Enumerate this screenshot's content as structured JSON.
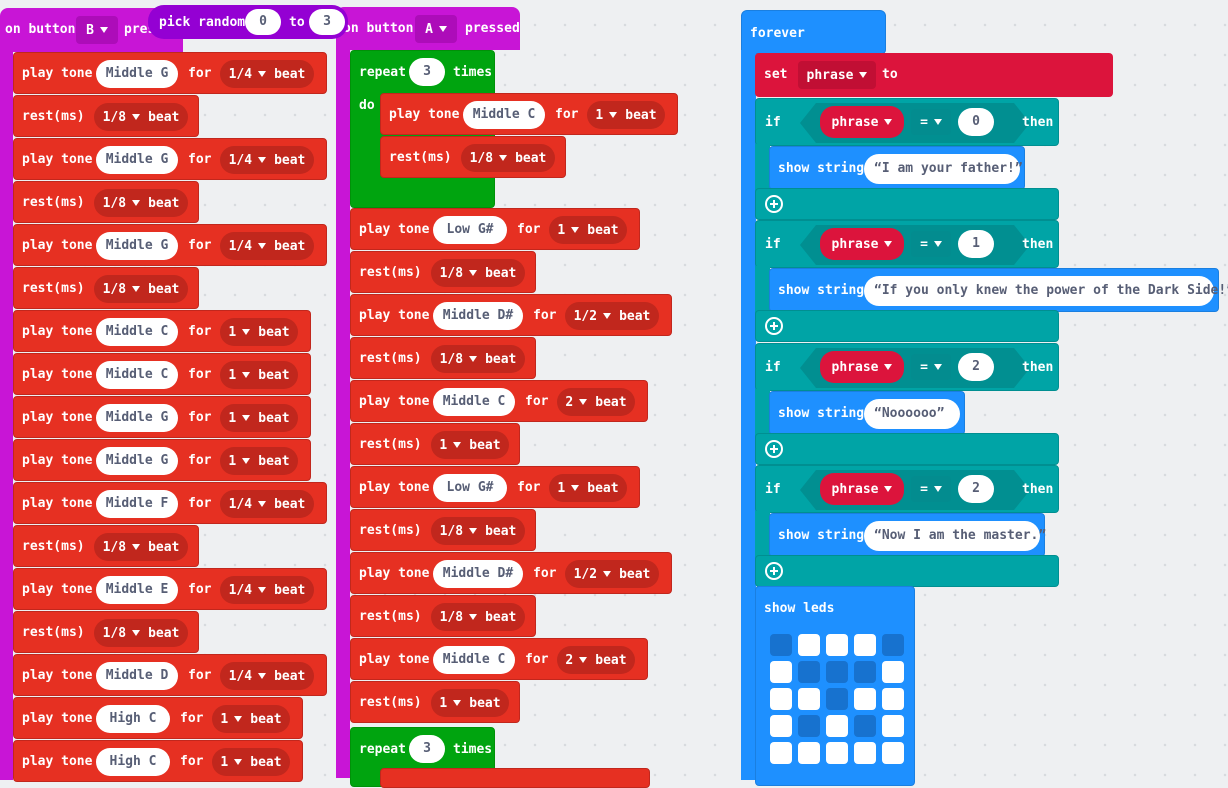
{
  "col1": {
    "hat": {
      "on": "on button",
      "button": "B",
      "event": "pressed"
    },
    "blocks": [
      {
        "kind": "tone",
        "note": "Middle G",
        "dur": "1/4",
        "unit": "beat"
      },
      {
        "kind": "rest",
        "dur": "1/8",
        "unit": "beat"
      },
      {
        "kind": "tone",
        "note": "Middle G",
        "dur": "1/4",
        "unit": "beat"
      },
      {
        "kind": "rest",
        "dur": "1/8",
        "unit": "beat"
      },
      {
        "kind": "tone",
        "note": "Middle G",
        "dur": "1/4",
        "unit": "beat"
      },
      {
        "kind": "rest",
        "dur": "1/8",
        "unit": "beat"
      },
      {
        "kind": "tone",
        "note": "Middle C",
        "dur": "1",
        "unit": "beat"
      },
      {
        "kind": "tone",
        "note": "Middle C",
        "dur": "1",
        "unit": "beat"
      },
      {
        "kind": "tone",
        "note": "Middle G",
        "dur": "1",
        "unit": "beat"
      },
      {
        "kind": "tone",
        "note": "Middle G",
        "dur": "1",
        "unit": "beat"
      },
      {
        "kind": "tone",
        "note": "Middle F",
        "dur": "1/4",
        "unit": "beat"
      },
      {
        "kind": "rest",
        "dur": "1/8",
        "unit": "beat"
      },
      {
        "kind": "tone",
        "note": "Middle E",
        "dur": "1/4",
        "unit": "beat"
      },
      {
        "kind": "rest",
        "dur": "1/8",
        "unit": "beat"
      },
      {
        "kind": "tone",
        "note": "Middle D",
        "dur": "1/4",
        "unit": "beat"
      },
      {
        "kind": "tone",
        "note": "High C",
        "dur": "1",
        "unit": "beat"
      },
      {
        "kind": "tone",
        "note": "High C",
        "dur": "1",
        "unit": "beat"
      }
    ]
  },
  "col2": {
    "hat": {
      "on": "on button",
      "button": "A",
      "event": "pressed"
    },
    "repeat1": {
      "label": "repeat",
      "count": "3",
      "times": "times",
      "do": "do"
    },
    "inner": [
      {
        "kind": "tone",
        "note": "Middle C",
        "dur": "1",
        "unit": "beat"
      },
      {
        "kind": "rest",
        "dur": "1/8",
        "unit": "beat"
      }
    ],
    "blocks": [
      {
        "kind": "tone",
        "note": "Low G#",
        "dur": "1",
        "unit": "beat"
      },
      {
        "kind": "rest",
        "dur": "1/8",
        "unit": "beat"
      },
      {
        "kind": "tone",
        "note": "Middle D#",
        "dur": "1/2",
        "unit": "beat"
      },
      {
        "kind": "rest",
        "dur": "1/8",
        "unit": "beat"
      },
      {
        "kind": "tone",
        "note": "Middle C",
        "dur": "2",
        "unit": "beat"
      },
      {
        "kind": "rest",
        "dur": "1",
        "unit": "beat"
      },
      {
        "kind": "tone",
        "note": "Low G#",
        "dur": "1",
        "unit": "beat"
      },
      {
        "kind": "rest",
        "dur": "1/8",
        "unit": "beat"
      },
      {
        "kind": "tone",
        "note": "Middle D#",
        "dur": "1/2",
        "unit": "beat"
      },
      {
        "kind": "rest",
        "dur": "1/8",
        "unit": "beat"
      },
      {
        "kind": "tone",
        "note": "Middle C",
        "dur": "2",
        "unit": "beat"
      },
      {
        "kind": "rest",
        "dur": "1",
        "unit": "beat"
      }
    ],
    "repeat2": {
      "label": "repeat",
      "count": "3",
      "times": "times"
    }
  },
  "labels": {
    "play_tone": "play tone",
    "for": "for",
    "rest": "rest(ms)"
  },
  "col3": {
    "forever": "forever",
    "set": {
      "label": "set",
      "var": "phrase",
      "to": "to",
      "fn": "pick random",
      "min": "0",
      "to2": "to",
      "max": "3"
    },
    "ifs": [
      {
        "if": "if",
        "var": "phrase",
        "op": "=",
        "val": "0",
        "then": "then",
        "show": "show string",
        "text": "I am your father!"
      },
      {
        "if": "if",
        "var": "phrase",
        "op": "=",
        "val": "1",
        "then": "then",
        "show": "show string",
        "text": "If you only knew the power of the Dark Side!"
      },
      {
        "if": "if",
        "var": "phrase",
        "op": "=",
        "val": "2",
        "then": "then",
        "show": "show string",
        "text": "Noooooo"
      },
      {
        "if": "if",
        "var": "phrase",
        "op": "=",
        "val": "2",
        "then": "then",
        "show": "show string",
        "text": "Now I am the master."
      }
    ],
    "show_leds": "show leds",
    "leds": [
      [
        0,
        1,
        1,
        1,
        0
      ],
      [
        1,
        0,
        0,
        0,
        1
      ],
      [
        1,
        1,
        0,
        1,
        1
      ],
      [
        1,
        0,
        1,
        0,
        1
      ],
      [
        1,
        1,
        1,
        1,
        1
      ]
    ]
  },
  "colors": {
    "event_magenta": "#c815d6",
    "music_red": "#e63022",
    "loops_green": "#00a40f",
    "basic_blue": "#1e90ff",
    "logic_teal": "#00a4a6",
    "variables_crimson": "#dc143c",
    "math_purple": "#9400d3"
  }
}
